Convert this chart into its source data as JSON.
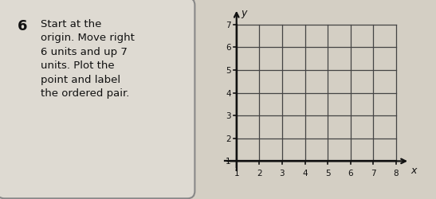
{
  "title_number": "6",
  "instruction_lines": [
    "Start at the",
    "origin. Move right",
    "6 units and up 7",
    "units. Plot the",
    "point and label",
    "the ordered pair."
  ],
  "x_ticks": [
    1,
    2,
    3,
    4,
    5,
    6,
    7,
    8
  ],
  "y_ticks": [
    1,
    2,
    3,
    4,
    5,
    6,
    7
  ],
  "x_label": "x",
  "y_label": "y",
  "grid_color": "#444444",
  "axis_color": "#111111",
  "page_bg": "#d4cfc4",
  "panel_bg": "#dedad2",
  "grid_bg": "#e8e4dc",
  "text_color": "#111111",
  "border_color": "#888888",
  "instruction_fontsize": 9.5,
  "number_fontsize": 13,
  "tick_fontsize": 7.5,
  "label_fontsize": 9
}
